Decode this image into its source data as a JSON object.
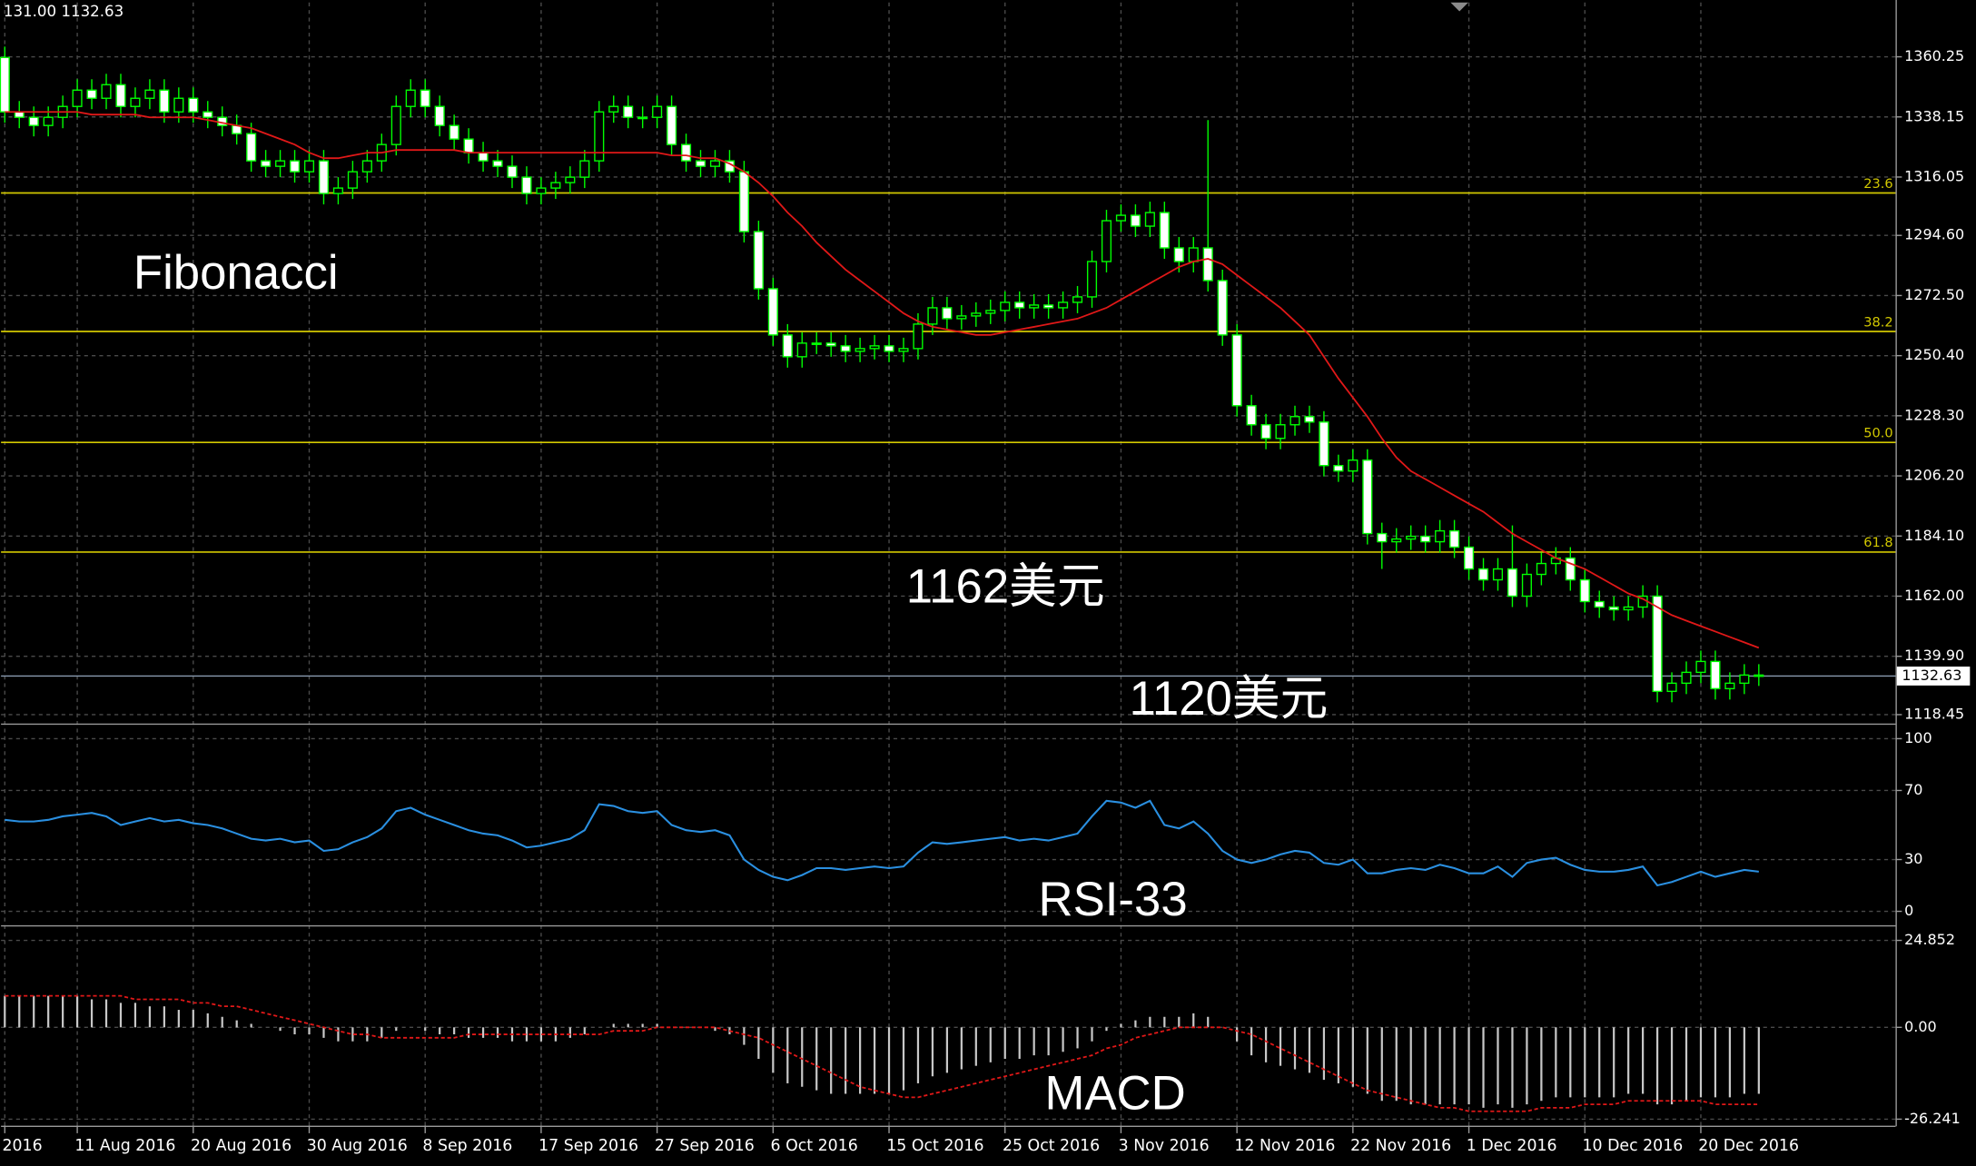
{
  "chart_data": [
    {
      "type": "candlestick",
      "header": "131.00 1132.63",
      "x": [
        "2016",
        null,
        null,
        null,
        null,
        "11 Aug 2016",
        null,
        null,
        null,
        null,
        null,
        null,
        null,
        "20 Aug 2016",
        null,
        null,
        null,
        null,
        null,
        null,
        null,
        "30 Aug 2016",
        null,
        null,
        null,
        null,
        null,
        null,
        null,
        "8 Sep 2016",
        null,
        null,
        null,
        null,
        null,
        null,
        null,
        "17 Sep 2016",
        null,
        null,
        null,
        null,
        null,
        null,
        null,
        "27 Sep 2016",
        null,
        null,
        null,
        null,
        null,
        null,
        null,
        "6 Oct 2016",
        null,
        null,
        null,
        null,
        null,
        null,
        null,
        "15 Oct 2016",
        null,
        null,
        null,
        null,
        null,
        null,
        null,
        "25 Oct 2016",
        null,
        null,
        null,
        null,
        null,
        null,
        null,
        "3 Nov 2016",
        null,
        null,
        null,
        null,
        null,
        null,
        null,
        "12 Nov 2016",
        null,
        null,
        null,
        null,
        null,
        null,
        null,
        "22 Nov 2016",
        null,
        null,
        null,
        null,
        null,
        null,
        null,
        "1 Dec 2016",
        null,
        null,
        null,
        null,
        null,
        null,
        null,
        "10 Dec 2016",
        null,
        null,
        null,
        null,
        null,
        null,
        null,
        "20 Dec 2016",
        null,
        null,
        null,
        null
      ],
      "open": [
        1360,
        1340,
        1338,
        1335,
        1338,
        1342,
        1348,
        1345,
        1350,
        1342,
        1345,
        1348,
        1340,
        1345,
        1340,
        1338,
        1335,
        1332,
        1322,
        1320,
        1322,
        1318,
        1322,
        1310,
        1312,
        1318,
        1322,
        1328,
        1342,
        1348,
        1342,
        1335,
        1330,
        1325,
        1322,
        1320,
        1316,
        1310,
        1312,
        1314,
        1316,
        1322,
        1340,
        1342,
        1338,
        1338,
        1342,
        1328,
        1322,
        1320,
        1322,
        1318,
        1296,
        1275,
        1258,
        1250,
        1255,
        1255,
        1254,
        1252,
        1253,
        1254,
        1252,
        1253,
        1262,
        1268,
        1264,
        1265,
        1266,
        1267,
        1270,
        1268,
        1269,
        1268,
        1270,
        1272,
        1285,
        1300,
        1302,
        1298,
        1303,
        1290,
        1285,
        1290,
        1278,
        1258,
        1232,
        1225,
        1220,
        1225,
        1228,
        1226,
        1210,
        1208,
        1212,
        1185,
        1182,
        1183,
        1184,
        1182,
        1186,
        1180,
        1172,
        1168,
        1172,
        1162,
        1170,
        1174,
        1176,
        1168,
        1160,
        1158,
        1157,
        1158,
        1162,
        1127,
        1130,
        1134,
        1138,
        1128,
        1130,
        1133
      ],
      "high": [
        1364,
        1344,
        1342,
        1342,
        1346,
        1352,
        1352,
        1354,
        1354,
        1349,
        1352,
        1352,
        1349,
        1349,
        1344,
        1342,
        1339,
        1336,
        1326,
        1326,
        1326,
        1326,
        1326,
        1316,
        1322,
        1326,
        1332,
        1346,
        1352,
        1352,
        1346,
        1339,
        1334,
        1329,
        1326,
        1324,
        1320,
        1316,
        1318,
        1320,
        1326,
        1344,
        1346,
        1346,
        1342,
        1346,
        1346,
        1332,
        1326,
        1326,
        1326,
        1322,
        1300,
        1279,
        1262,
        1259,
        1259,
        1259,
        1258,
        1257,
        1258,
        1258,
        1257,
        1266,
        1272,
        1272,
        1269,
        1270,
        1271,
        1274,
        1274,
        1273,
        1273,
        1274,
        1276,
        1289,
        1304,
        1306,
        1306,
        1307,
        1307,
        1294,
        1294,
        1337,
        1282,
        1262,
        1236,
        1229,
        1229,
        1232,
        1232,
        1230,
        1214,
        1216,
        1216,
        1189,
        1187,
        1188,
        1188,
        1190,
        1190,
        1184,
        1176,
        1176,
        1188,
        1174,
        1178,
        1180,
        1180,
        1172,
        1164,
        1162,
        1162,
        1166,
        1166,
        1134,
        1138,
        1142,
        1142,
        1134,
        1137,
        1137
      ],
      "low": [
        1336,
        1334,
        1331,
        1331,
        1334,
        1338,
        1341,
        1341,
        1338,
        1338,
        1341,
        1336,
        1336,
        1336,
        1334,
        1331,
        1328,
        1318,
        1316,
        1316,
        1314,
        1314,
        1306,
        1306,
        1308,
        1314,
        1318,
        1324,
        1338,
        1338,
        1331,
        1326,
        1321,
        1318,
        1316,
        1312,
        1306,
        1306,
        1308,
        1310,
        1312,
        1318,
        1336,
        1334,
        1334,
        1334,
        1324,
        1318,
        1316,
        1316,
        1314,
        1292,
        1271,
        1254,
        1246,
        1246,
        1251,
        1250,
        1248,
        1248,
        1249,
        1248,
        1248,
        1249,
        1258,
        1260,
        1260,
        1261,
        1262,
        1263,
        1264,
        1264,
        1264,
        1264,
        1266,
        1268,
        1281,
        1296,
        1294,
        1294,
        1286,
        1281,
        1281,
        1274,
        1254,
        1228,
        1221,
        1216,
        1216,
        1221,
        1222,
        1206,
        1204,
        1204,
        1181,
        1172,
        1178,
        1179,
        1178,
        1178,
        1176,
        1168,
        1164,
        1164,
        1158,
        1158,
        1166,
        1170,
        1164,
        1156,
        1154,
        1153,
        1153,
        1154,
        1123,
        1123,
        1126,
        1130,
        1124,
        1124,
        1126,
        1129
      ],
      "close": [
        1340,
        1338,
        1335,
        1338,
        1342,
        1348,
        1345,
        1350,
        1342,
        1345,
        1348,
        1340,
        1345,
        1340,
        1338,
        1335,
        1332,
        1322,
        1320,
        1322,
        1318,
        1322,
        1310,
        1312,
        1318,
        1322,
        1328,
        1342,
        1348,
        1342,
        1335,
        1330,
        1325,
        1322,
        1320,
        1316,
        1310,
        1312,
        1314,
        1316,
        1322,
        1340,
        1342,
        1338,
        1338,
        1342,
        1328,
        1322,
        1320,
        1322,
        1318,
        1296,
        1275,
        1258,
        1250,
        1255,
        1255,
        1254,
        1252,
        1253,
        1254,
        1252,
        1253,
        1262,
        1268,
        1264,
        1265,
        1266,
        1267,
        1270,
        1268,
        1269,
        1268,
        1270,
        1272,
        1285,
        1300,
        1302,
        1298,
        1303,
        1290,
        1285,
        1290,
        1278,
        1258,
        1232,
        1225,
        1220,
        1225,
        1228,
        1226,
        1210,
        1208,
        1212,
        1185,
        1182,
        1183,
        1184,
        1182,
        1186,
        1180,
        1172,
        1168,
        1172,
        1162,
        1170,
        1174,
        1176,
        1168,
        1160,
        1158,
        1157,
        1158,
        1162,
        1127,
        1130,
        1134,
        1138,
        1128,
        1130,
        1133,
        1132.63
      ],
      "colors": {
        "up": "#000000",
        "down": "#ffffff",
        "wick": "#00ff00"
      },
      "series": [
        {
          "color": "#e01818",
          "values": [
            1340,
            1340,
            1340,
            1340,
            1340,
            1340,
            1339,
            1339,
            1339,
            1339,
            1338,
            1338,
            1338,
            1338,
            1337,
            1336,
            1335,
            1334,
            1332,
            1330,
            1328,
            1325,
            1323,
            1323,
            1324,
            1325,
            1325,
            1326,
            1326,
            1326,
            1326,
            1326,
            1325,
            1325,
            1325,
            1325,
            1325,
            1325,
            1325,
            1325,
            1325,
            1325,
            1325,
            1325,
            1325,
            1325,
            1324,
            1324,
            1323,
            1323,
            1321,
            1318,
            1314,
            1309,
            1303,
            1298,
            1292,
            1287,
            1282,
            1278,
            1274,
            1270,
            1266,
            1263,
            1261,
            1260,
            1259,
            1258,
            1258,
            1259,
            1260,
            1261,
            1262,
            1263,
            1264,
            1266,
            1268,
            1271,
            1274,
            1277,
            1280,
            1283,
            1285,
            1286,
            1284,
            1280,
            1276,
            1272,
            1268,
            1263,
            1258,
            1250,
            1242,
            1235,
            1228,
            1220,
            1213,
            1208,
            1205,
            1202,
            1199,
            1196,
            1193,
            1189,
            1185,
            1182,
            1179,
            1176,
            1174,
            1172,
            1169,
            1166,
            1163,
            1161,
            1158,
            1155,
            1153,
            1151,
            1149,
            1147,
            1145,
            1143
          ]
        }
      ],
      "fibonacci": {
        "color": "#d2c800",
        "levels": [
          23.6,
          38.2,
          {
            "value": 50,
            "label": "50.0"
          },
          61.8
        ],
        "prices": [
          1310.2,
          1259.3,
          1218.5,
          1178.2
        ]
      },
      "last_price": 1132.63,
      "last_price_color": "#8a9bb0",
      "annotations": [
        "Fibonacci",
        "1162美元",
        "1120美元"
      ],
      "ylim": [
        1116.1,
        1380.2
      ],
      "yticks": [
        1360.25,
        1338.15,
        1316.05,
        {
          "value": 1294.6,
          "label": "1294.60"
        },
        {
          "value": 1272.5,
          "label": "1272.50"
        },
        {
          "value": 1250.4,
          "label": "1250.40"
        },
        {
          "value": 1228.3,
          "label": "1228.30"
        },
        {
          "value": 1206.2,
          "label": "1206.20"
        },
        {
          "value": 1184.1,
          "label": "1184.10"
        },
        {
          "value": 1162,
          "label": "1162.00"
        },
        {
          "value": 1139.9,
          "label": "1139.90"
        },
        1118.45
      ],
      "grid": true
    },
    {
      "type": "line",
      "color": "#2a8fe0",
      "annotation": "RSI-33",
      "values": [
        53,
        52,
        52,
        53,
        55,
        56,
        57,
        55,
        50,
        52,
        54,
        52,
        53,
        51,
        50,
        48,
        45,
        42,
        41,
        42,
        40,
        41,
        35,
        36,
        40,
        43,
        48,
        58,
        60,
        56,
        53,
        50,
        47,
        45,
        44,
        41,
        37,
        38,
        40,
        42,
        47,
        62,
        61,
        58,
        57,
        58,
        50,
        47,
        46,
        47,
        44,
        30,
        24,
        20,
        18,
        21,
        25,
        25,
        24,
        25,
        26,
        25,
        26,
        34,
        40,
        39,
        40,
        41,
        42,
        43,
        41,
        42,
        41,
        43,
        45,
        55,
        64,
        63,
        60,
        64,
        50,
        48,
        52,
        45,
        35,
        30,
        28,
        30,
        33,
        35,
        34,
        28,
        27,
        30,
        22,
        22,
        24,
        25,
        24,
        27,
        25,
        22,
        22,
        26,
        20,
        28,
        30,
        31,
        27,
        24,
        23,
        23,
        24,
        26,
        15,
        17,
        20,
        23,
        20,
        22,
        24,
        23
      ],
      "ylim": [
        -6.6,
        107.3
      ],
      "yticks": [
        100,
        70,
        30,
        0
      ],
      "grid": true
    },
    {
      "type": "macd",
      "color": "#c8c8c8",
      "annotation": "MACD",
      "values": [
        9,
        9,
        9,
        9,
        9,
        9,
        8,
        8,
        7,
        7,
        6,
        6,
        5,
        5,
        4,
        3,
        2,
        1,
        0,
        -1,
        -2,
        -2,
        -3,
        -4,
        -4,
        -4,
        -3,
        -1,
        0,
        -1,
        -2,
        -2,
        -3,
        -3,
        -3,
        -4,
        -4,
        -4,
        -4,
        -3,
        -2,
        0,
        1,
        1,
        1,
        1,
        0,
        0,
        0,
        -1,
        -2,
        -5,
        -9,
        -13,
        -16,
        -17,
        -18,
        -19,
        -19,
        -19,
        -19,
        -19,
        -18,
        -16,
        -14,
        -13,
        -12,
        -11,
        -10,
        -9,
        -9,
        -8,
        -8,
        -7,
        -6,
        -4,
        -1,
        1,
        2,
        3,
        3,
        3,
        4,
        3,
        0,
        -4,
        -8,
        -10,
        -11,
        -12,
        -13,
        -15,
        -16,
        -17,
        -19,
        -21,
        -21,
        -22,
        -22,
        -22,
        -22,
        -22,
        -23,
        -22,
        -23,
        -22,
        -21,
        -20,
        -20,
        -20,
        -20,
        -20,
        -19,
        -19,
        -22,
        -22,
        -21,
        -20,
        -20,
        -20,
        -19,
        -19
      ],
      "signal": {
        "color": "#e01818",
        "values": [
          9,
          9,
          9,
          9,
          9,
          9,
          9,
          9,
          9,
          8,
          8,
          8,
          8,
          7,
          7,
          6,
          6,
          5,
          4,
          3,
          2,
          1,
          0,
          -1,
          -2,
          -2,
          -3,
          -3,
          -3,
          -3,
          -3,
          -3,
          -2,
          -2,
          -2,
          -2,
          -2,
          -2,
          -2,
          -2,
          -2,
          -2,
          -1,
          -1,
          -1,
          0,
          0,
          0,
          0,
          0,
          -1,
          -2,
          -3,
          -5,
          -7,
          -9,
          -11,
          -13,
          -15,
          -17,
          -18,
          -19,
          -20,
          -20,
          -19,
          -18,
          -17,
          -16,
          -15,
          -14,
          -13,
          -12,
          -11,
          -10,
          -9,
          -8,
          -6,
          -5,
          -3,
          -2,
          -1,
          0,
          0,
          0,
          0,
          -1,
          -2,
          -4,
          -6,
          -8,
          -10,
          -12,
          -14,
          -16,
          -18,
          -19,
          -20,
          -21,
          -22,
          -23,
          -23,
          -24,
          -24,
          -24,
          -24,
          -24,
          -23,
          -23,
          -23,
          -22,
          -22,
          -22,
          -21,
          -21,
          -21,
          -21,
          -21,
          -21,
          -22,
          -22,
          -22,
          -22
        ]
      },
      "ylim": [
        -28.1,
        28.1
      ],
      "yticks": [
        24.852,
        {
          "value": 0,
          "label": "0.00"
        },
        -26.241
      ],
      "grid": true
    }
  ]
}
